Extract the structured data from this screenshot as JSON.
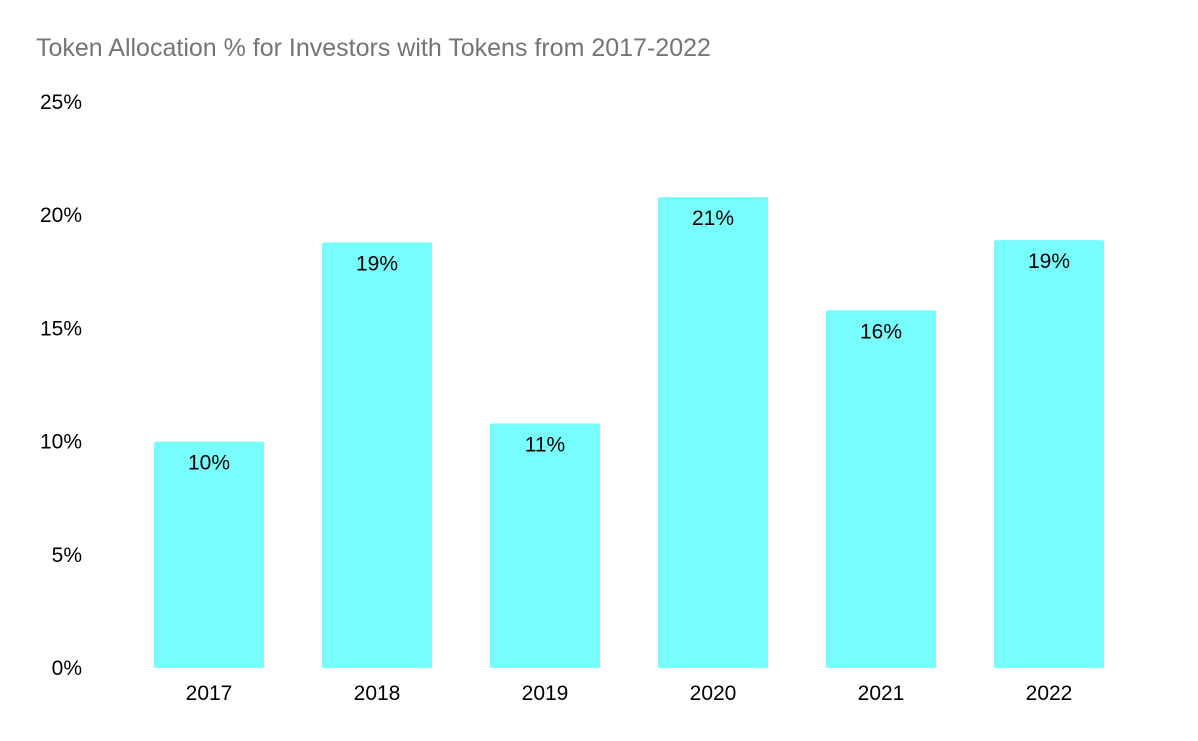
{
  "chart_data": {
    "type": "bar",
    "title": "Token Allocation % for Investors with Tokens from 2017-2022",
    "xlabel": "",
    "ylabel": "",
    "categories": [
      "2017",
      "2018",
      "2019",
      "2020",
      "2021",
      "2022"
    ],
    "values": [
      10,
      18.8,
      10.8,
      20.8,
      15.8,
      18.9
    ],
    "data_labels": [
      "10%",
      "19%",
      "11%",
      "21%",
      "16%",
      "19%"
    ],
    "ylim": [
      0,
      25
    ],
    "yticks": [
      0,
      5,
      10,
      15,
      20,
      25
    ],
    "ytick_labels": [
      "0%",
      "5%",
      "10%",
      "15%",
      "20%",
      "25%"
    ],
    "grid": false,
    "legend": "none",
    "bar_color": "#78FDFD"
  }
}
